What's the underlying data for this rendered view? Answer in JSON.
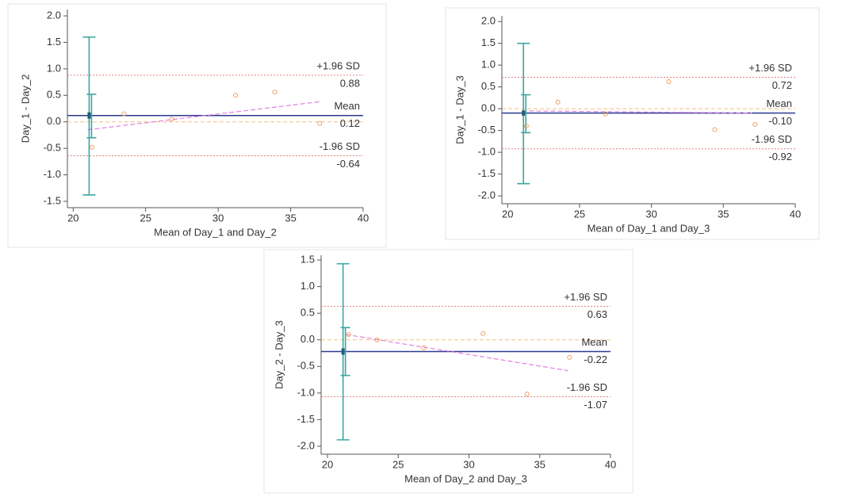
{
  "chart_data": [
    {
      "type": "scatter",
      "xlabel": "Mean of Day_1 and Day_2",
      "ylabel": "Day_1 - Day_2",
      "x": [
        21.3,
        23.5,
        26.8,
        31.2,
        33.9,
        37.0
      ],
      "values": [
        -0.48,
        0.15,
        0.05,
        0.5,
        0.56,
        -0.03
      ],
      "color": "#f0a060",
      "xlim": [
        19.6,
        40
      ],
      "xticks": [
        20,
        25,
        30,
        35,
        40
      ],
      "ylim": [
        -1.62,
        2.12
      ],
      "yticks": [
        {
          "value": -1.5,
          "label": "-1.5"
        },
        {
          "value": -1,
          "label": "-1.0"
        },
        -0.5,
        {
          "value": 0,
          "label": "0.0"
        },
        0.5,
        {
          "value": 1,
          "label": "1.0"
        },
        1.5,
        {
          "value": 2,
          "label": "2.0"
        }
      ],
      "reference_lines": [
        {
          "label": "+1.96 SD",
          "value": 0.88,
          "color": "#e08080"
        },
        {
          "label": "Mean",
          "value": 0.12,
          "color": "#2b3a8f"
        },
        {
          "label": "-1.96 SD",
          "value": -0.64,
          "color": "#e08080"
        }
      ],
      "ci_x": 21.1,
      "ci_color": "#3aa6a0",
      "confidence_intervals": [
        {
          "low": -1.38,
          "high": 1.6
        },
        {
          "low": -0.3,
          "high": 0.52
        },
        {
          "low": 0.06,
          "high": 0.18
        }
      ],
      "regression": {
        "x": [
          21.0,
          37.0
        ],
        "y": [
          -0.15,
          0.38
        ],
        "color": "#e080e0"
      }
    },
    {
      "type": "scatter",
      "xlabel": "Mean of Day_1 and Day_3",
      "ylabel": "Day_1 - Day_3",
      "x": [
        21.3,
        23.5,
        26.8,
        31.2,
        34.4,
        37.2
      ],
      "values": [
        -0.4,
        0.15,
        -0.12,
        0.62,
        -0.48,
        -0.36
      ],
      "color": "#f0a060",
      "xlim": [
        19.6,
        40
      ],
      "xticks": [
        20,
        25,
        30,
        35,
        40
      ],
      "ylim": [
        -2.18,
        2.13
      ],
      "yticks": [
        {
          "value": -2,
          "label": "-2.0"
        },
        -1.5,
        {
          "value": -1,
          "label": "-1.0"
        },
        -0.5,
        {
          "value": 0,
          "label": "0.0"
        },
        0.5,
        {
          "value": 1,
          "label": "1.0"
        },
        1.5,
        {
          "value": 2,
          "label": "2.0"
        }
      ],
      "reference_lines": [
        {
          "label": "+1.96 SD",
          "value": 0.72,
          "color": "#e08080"
        },
        {
          "label": "Mean",
          "value": -0.1,
          "value_label": "-0.10",
          "color": "#2b3a8f"
        },
        {
          "label": "-1.96 SD",
          "value": -0.92,
          "color": "#e08080"
        }
      ],
      "ci_x": 21.1,
      "ci_color": "#3aa6a0",
      "confidence_intervals": [
        {
          "low": -1.72,
          "high": 1.5
        },
        {
          "low": -0.55,
          "high": 0.32
        },
        {
          "low": -0.16,
          "high": -0.04
        }
      ],
      "regression": {
        "x": [
          21.0,
          37.0
        ],
        "y": [
          -0.05,
          -0.1
        ],
        "color": "#e080e0"
      }
    },
    {
      "type": "scatter",
      "xlabel": "Mean of Day_2 and Day_3",
      "ylabel": "Day_2 - Day_3",
      "x": [
        21.5,
        23.5,
        26.8,
        31.0,
        34.1,
        37.1
      ],
      "values": [
        0.1,
        0.0,
        -0.15,
        0.12,
        -1.02,
        -0.33
      ],
      "color": "#f0a060",
      "xlim": [
        19.55,
        40
      ],
      "xticks": [
        20,
        25,
        30,
        35,
        40
      ],
      "ylim": [
        -2.15,
        1.59
      ],
      "yticks": [
        {
          "value": -2,
          "label": "-2.0"
        },
        -1.5,
        {
          "value": -1,
          "label": "-1.0"
        },
        -0.5,
        {
          "value": 0,
          "label": "0.0"
        },
        0.5,
        {
          "value": 1,
          "label": "1.0"
        },
        1.5
      ],
      "reference_lines": [
        {
          "label": "+1.96 SD",
          "value": 0.63,
          "color": "#e08080"
        },
        {
          "label": "Mean",
          "value": -0.22,
          "color": "#2b3a8f"
        },
        {
          "label": "-1.96 SD",
          "value": -1.07,
          "color": "#e08080"
        }
      ],
      "ci_x": 21.1,
      "ci_color": "#3aa6a0",
      "confidence_intervals": [
        {
          "low": -1.88,
          "high": 1.43
        },
        {
          "low": -0.67,
          "high": 0.23
        },
        {
          "low": -0.28,
          "high": -0.16
        }
      ],
      "regression": {
        "x": [
          21.3,
          37.0
        ],
        "y": [
          0.1,
          -0.58
        ],
        "color": "#e080e0"
      }
    }
  ]
}
